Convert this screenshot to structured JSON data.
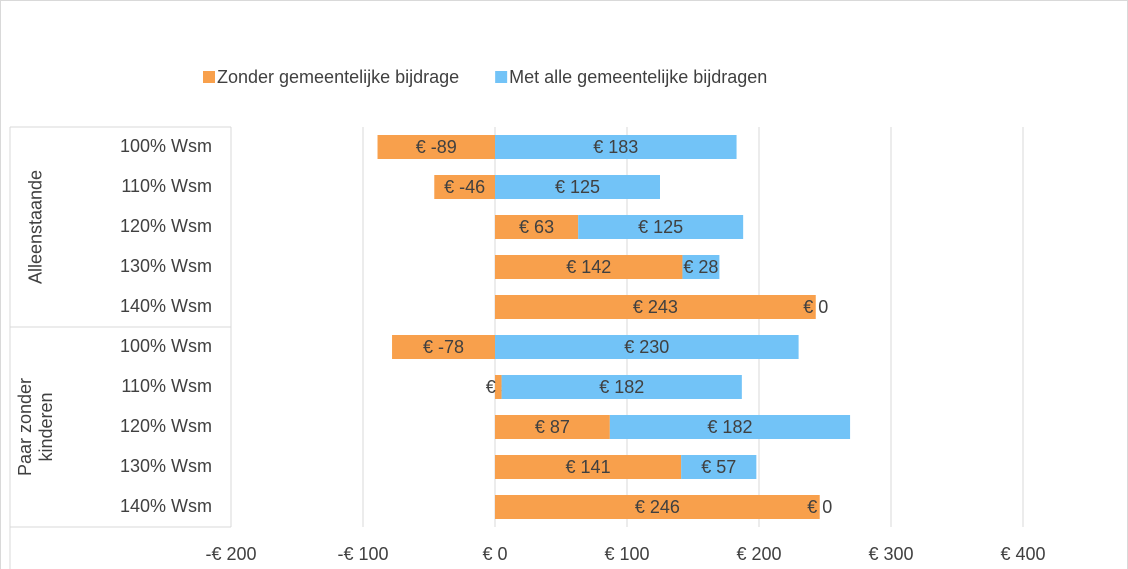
{
  "chart_data": {
    "type": "stacked_hbar",
    "groups": [
      {
        "name": "Alleenstaande",
        "categories": [
          "100% Wsm",
          "110% Wsm",
          "120% Wsm",
          "130% Wsm",
          "140% Wsm"
        ]
      },
      {
        "name": "Paar zonder kinderen",
        "categories": [
          "100% Wsm",
          "110% Wsm",
          "120% Wsm",
          "130% Wsm",
          "140% Wsm"
        ]
      }
    ],
    "series": [
      {
        "name": "Zonder gemeentelijke bijdrage",
        "color": "#f8a04c",
        "values": [
          -89,
          -46,
          63,
          142,
          243,
          -78,
          5,
          87,
          141,
          246
        ],
        "value_labels": [
          "€ -89",
          "€ -46",
          "€ 63",
          "€ 142",
          "€ 243",
          "€ -78",
          "€ 5",
          "€ 87",
          "€ 141",
          "€ 246"
        ]
      },
      {
        "name": "Met alle gemeentelijke bijdragen",
        "color": "#72c3f7",
        "values": [
          183,
          125,
          125,
          28,
          0,
          230,
          182,
          182,
          57,
          0
        ],
        "value_labels": [
          "€ 183",
          "€ 125",
          "€ 125",
          "€ 28",
          "€ 0",
          "€ 230",
          "€ 182",
          "€ 182",
          "€ 57",
          "€ 0"
        ]
      }
    ],
    "xlim": [
      -200,
      400
    ],
    "xticks": [
      {
        "value": -200,
        "label": "-€ 200"
      },
      {
        "value": -100,
        "label": "-€ 100"
      },
      {
        "value": 0,
        "label": "€ 0"
      },
      {
        "value": 100,
        "label": "€ 100"
      },
      {
        "value": 200,
        "label": "€ 200"
      },
      {
        "value": 300,
        "label": "€ 300"
      },
      {
        "value": 400,
        "label": "€ 400"
      }
    ],
    "grid": true,
    "legend": "top"
  }
}
